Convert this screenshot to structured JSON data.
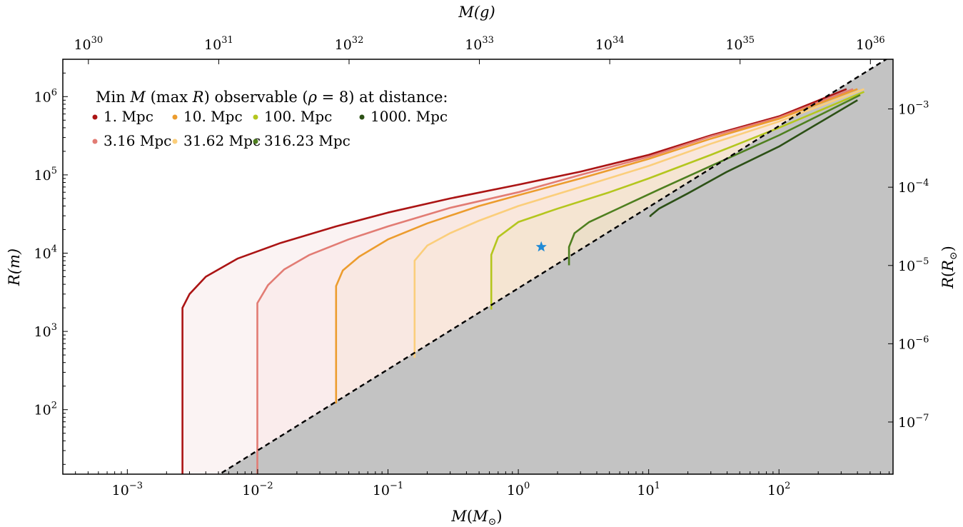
{
  "chart_data": {
    "type": "line",
    "title": "",
    "legend": {
      "title_parts": [
        "Min ",
        "M",
        " (max ",
        "R",
        ") observable (",
        "ρ",
        " = 8) at distance:"
      ],
      "placement": "upper-left",
      "ncol": 4
    },
    "axes": {
      "x_bottom": {
        "label_main": "M",
        "label_paren_open": "(",
        "label_sub_base": "M",
        "label_sub": "⊙",
        "label_paren_close": ")",
        "scale": "log",
        "lim": [
          0.00032,
          750
        ]
      },
      "y_left": {
        "label": "R(m)",
        "scale": "log",
        "lim": [
          15,
          3000000
        ]
      },
      "x_top": {
        "label": "M(g)",
        "scale": "log",
        "ticks": [
          "30",
          "31",
          "32",
          "33",
          "34",
          "35",
          "36"
        ],
        "tick_base": "10"
      },
      "y_right": {
        "label_main": "R",
        "label_sub_base": "R",
        "label_sub": "⊙",
        "scale": "log",
        "ticks": [
          "-3",
          "-4",
          "-5",
          "-6",
          "-7"
        ],
        "tick_base": "10"
      }
    },
    "x_ticks": [
      {
        "value": 0.001,
        "base": "10",
        "exp": "−3"
      },
      {
        "value": 0.01,
        "base": "10",
        "exp": "−2"
      },
      {
        "value": 0.1,
        "base": "10",
        "exp": "−1"
      },
      {
        "value": 1,
        "base": "10",
        "exp": "0"
      },
      {
        "value": 10,
        "base": "10",
        "exp": "1"
      },
      {
        "value": 100,
        "base": "10",
        "exp": "2"
      }
    ],
    "y_ticks": [
      {
        "value": 100,
        "base": "10",
        "exp": "2"
      },
      {
        "value": 1000,
        "base": "10",
        "exp": "3"
      },
      {
        "value": 10000,
        "base": "10",
        "exp": "4"
      },
      {
        "value": 100000,
        "base": "10",
        "exp": "5"
      },
      {
        "value": 1000000,
        "base": "10",
        "exp": "6"
      }
    ],
    "schwarzschild_line": {
      "style": "dashed",
      "color": "#000000",
      "shade_below": "#c3c3c3",
      "points": [
        [
          0.0053,
          15.6
        ],
        [
          750,
          3400000
        ]
      ]
    },
    "series": [
      {
        "name": "1. Mpc",
        "color": "#ab1414",
        "points": [
          [
            0.00265,
            15
          ],
          [
            0.00265,
            2000
          ],
          [
            0.003,
            3000
          ],
          [
            0.004,
            5000
          ],
          [
            0.007,
            8500
          ],
          [
            0.015,
            13500
          ],
          [
            0.04,
            22000
          ],
          [
            0.1,
            33000
          ],
          [
            0.3,
            50000
          ],
          [
            1,
            75000
          ],
          [
            3,
            110000
          ],
          [
            10,
            180000
          ],
          [
            30,
            320000
          ],
          [
            100,
            560000
          ],
          [
            330,
            1250000
          ]
        ]
      },
      {
        "name": "3.16 Mpc",
        "color": "#e27c74",
        "points": [
          [
            0.00995,
            15
          ],
          [
            0.00995,
            2300
          ],
          [
            0.012,
            3900
          ],
          [
            0.016,
            6200
          ],
          [
            0.025,
            9500
          ],
          [
            0.05,
            15000
          ],
          [
            0.1,
            22000
          ],
          [
            0.3,
            38000
          ],
          [
            1,
            60000
          ],
          [
            3,
            100000
          ],
          [
            10,
            170000
          ],
          [
            30,
            310000
          ],
          [
            100,
            540000
          ],
          [
            370,
            1250000
          ]
        ]
      },
      {
        "name": "10. Mpc",
        "color": "#ec9c2e",
        "points": [
          [
            0.04,
            120
          ],
          [
            0.04,
            3800
          ],
          [
            0.045,
            6000
          ],
          [
            0.06,
            9000
          ],
          [
            0.1,
            15000
          ],
          [
            0.2,
            24000
          ],
          [
            0.5,
            40000
          ],
          [
            1,
            55000
          ],
          [
            3,
            90000
          ],
          [
            10,
            160000
          ],
          [
            30,
            290000
          ],
          [
            100,
            520000
          ],
          [
            400,
            1250000
          ]
        ]
      },
      {
        "name": "31.62 Mpc",
        "color": "#fbce7b",
        "points": [
          [
            0.16,
            460
          ],
          [
            0.16,
            8000
          ],
          [
            0.2,
            12500
          ],
          [
            0.3,
            18000
          ],
          [
            0.5,
            26000
          ],
          [
            1,
            40000
          ],
          [
            3,
            70000
          ],
          [
            10,
            130000
          ],
          [
            30,
            250000
          ],
          [
            100,
            480000
          ],
          [
            450,
            1250000
          ]
        ]
      },
      {
        "name": "100. Mpc",
        "color": "#b4c61e",
        "points": [
          [
            0.62,
            1900
          ],
          [
            0.62,
            9500
          ],
          [
            0.7,
            16000
          ],
          [
            1,
            25000
          ],
          [
            2,
            37000
          ],
          [
            5,
            60000
          ],
          [
            10,
            90000
          ],
          [
            30,
            180000
          ],
          [
            100,
            400000
          ],
          [
            450,
            1150000
          ]
        ]
      },
      {
        "name": "316.23 Mpc",
        "color": "#4e7f1f",
        "points": [
          [
            2.45,
            7000
          ],
          [
            2.45,
            12000
          ],
          [
            2.7,
            18000
          ],
          [
            3.5,
            25000
          ],
          [
            6,
            38000
          ],
          [
            12,
            65000
          ],
          [
            30,
            130000
          ],
          [
            100,
            320000
          ],
          [
            420,
            1050000
          ]
        ]
      },
      {
        "name": "1000. Mpc",
        "color": "#2c5016",
        "points": [
          [
            10.3,
            29000
          ],
          [
            10.3,
            30000
          ],
          [
            12,
            37000
          ],
          [
            20,
            58000
          ],
          [
            40,
            110000
          ],
          [
            100,
            230000
          ],
          [
            400,
            900000
          ]
        ]
      }
    ],
    "legend_order": [
      "1. Mpc",
      "10. Mpc",
      "100. Mpc",
      "1000. Mpc",
      "3.16 Mpc",
      "31.62 Mpc",
      "316.23 Mpc"
    ],
    "marker": {
      "shape": "star",
      "color": "#1f8ad6",
      "x": 1.5,
      "y": 12000
    }
  }
}
